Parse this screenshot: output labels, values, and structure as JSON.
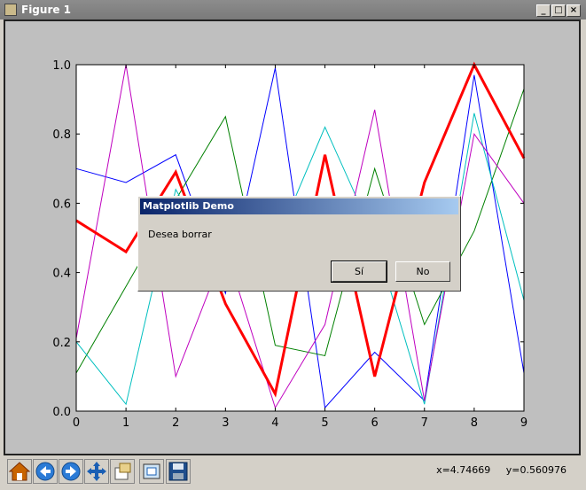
{
  "window": {
    "title": "Figure 1"
  },
  "window_controls": {
    "minimize": "_",
    "maximize": "□",
    "close": "×"
  },
  "chart_data": {
    "type": "line",
    "x": [
      0,
      1,
      2,
      3,
      4,
      5,
      6,
      7,
      8,
      9
    ],
    "xlim": [
      0,
      9
    ],
    "ylim": [
      0,
      1
    ],
    "xticks": [
      "0",
      "1",
      "2",
      "3",
      "4",
      "5",
      "6",
      "7",
      "8",
      "9"
    ],
    "yticks": [
      "0.0",
      "0.2",
      "0.4",
      "0.6",
      "0.8",
      "1.0"
    ],
    "series": [
      {
        "color": "#0000ff",
        "width": 1,
        "values": [
          0.7,
          0.66,
          0.74,
          0.34,
          0.99,
          0.01,
          0.17,
          0.03,
          0.97,
          0.11
        ]
      },
      {
        "color": "#008000",
        "width": 1,
        "values": [
          0.11,
          0.36,
          0.61,
          0.85,
          0.19,
          0.16,
          0.7,
          0.25,
          0.52,
          0.93
        ]
      },
      {
        "color": "#00bfbf",
        "width": 1,
        "values": [
          0.2,
          0.02,
          0.64,
          0.38,
          0.48,
          0.82,
          0.5,
          0.02,
          0.86,
          0.32
        ]
      },
      {
        "color": "#bf00bf",
        "width": 1,
        "values": [
          0.21,
          1.0,
          0.1,
          0.47,
          0.01,
          0.25,
          0.87,
          0.03,
          0.8,
          0.6
        ]
      },
      {
        "color": "#ff0000",
        "width": 3,
        "values": [
          0.55,
          0.46,
          0.69,
          0.31,
          0.05,
          0.74,
          0.1,
          0.66,
          1.0,
          0.73
        ]
      }
    ]
  },
  "toolbar": {
    "buttons": [
      {
        "name": "home-icon",
        "label": "Home"
      },
      {
        "name": "back-icon",
        "label": "Back"
      },
      {
        "name": "forward-icon",
        "label": "Forward"
      },
      {
        "name": "pan-icon",
        "label": "Pan"
      },
      {
        "name": "zoom-icon",
        "label": "Zoom"
      },
      {
        "name": "subplots-icon",
        "label": "Subplots"
      },
      {
        "name": "save-icon",
        "label": "Save"
      }
    ],
    "coords": "x=4.74669     y=0.560976"
  },
  "dialog": {
    "title": "Matplotlib Demo",
    "message": "Desea borrar",
    "yes_label": "Sí",
    "no_label": "No"
  }
}
